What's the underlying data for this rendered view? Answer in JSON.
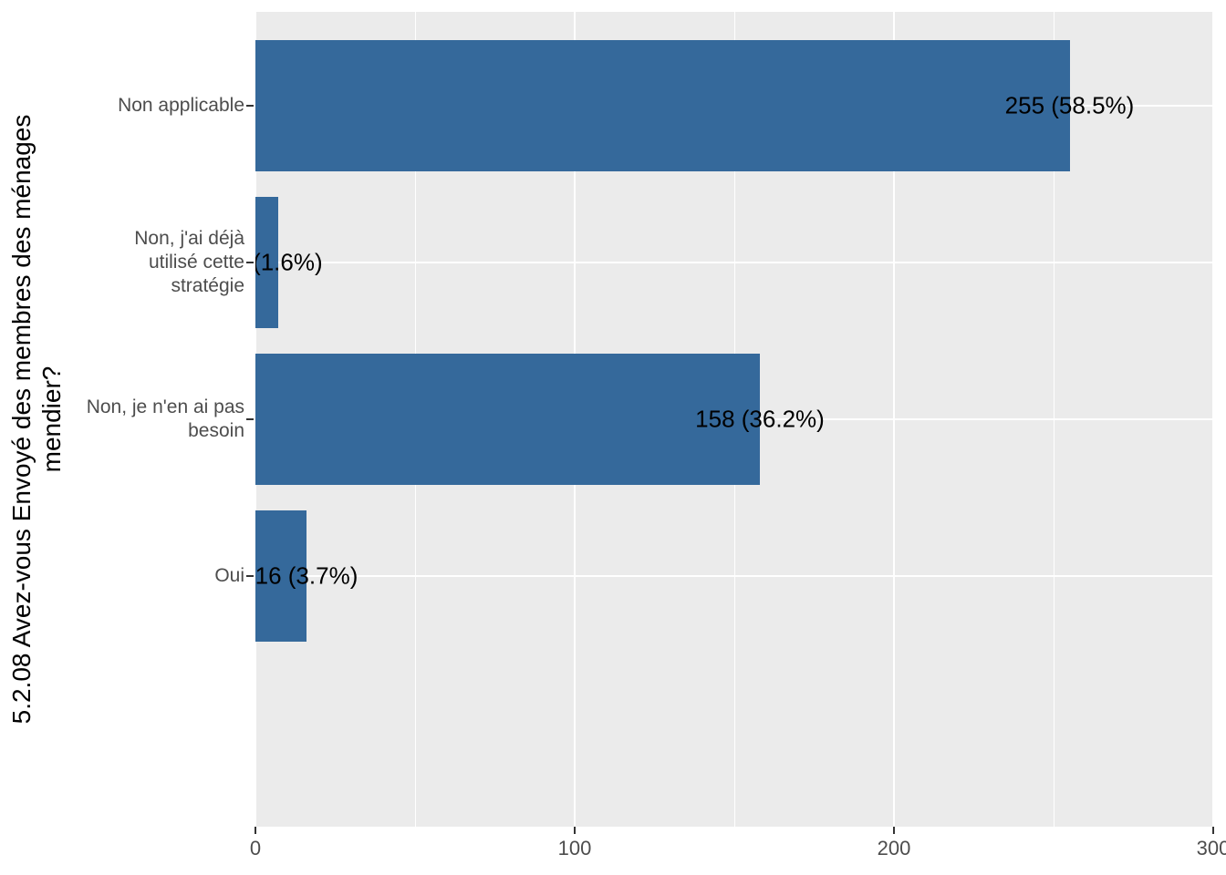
{
  "chart_data": {
    "type": "bar",
    "orientation": "horizontal",
    "title": "",
    "xlabel": "",
    "ylabel": "5.2.08 Avez-vous Envoyé des membres des ménages mendier?",
    "ylabel_display": "5.2.08 Avez-vous Envoyé des membres des ménages\nmendier?",
    "categories": [
      "Non applicable",
      "Non, j'ai déjà utilisé cette stratégie",
      "Non, je n'en ai pas besoin",
      "Oui"
    ],
    "category_label_lines": [
      "Non applicable",
      "Non, j'ai déjà\nutilisé cette\nstratégie",
      "Non, je n'en ai pas\nbesoin",
      "Oui"
    ],
    "values": [
      255,
      7,
      158,
      16
    ],
    "percents": [
      58.5,
      1.6,
      36.2,
      3.7
    ],
    "bar_labels": [
      "255 (58.5%)",
      "7 (1.6%)",
      "158 (36.2%)",
      "16 (3.7%)"
    ],
    "xlim": [
      0,
      300
    ],
    "x_major_ticks": [
      0,
      100,
      200,
      300
    ],
    "x_minor_gridlines": [
      50,
      150,
      250
    ],
    "grid": true,
    "legend": "none",
    "colors": {
      "bar": "#35699B",
      "panel_background": "#EBEBEB",
      "gridline": "#FFFFFF",
      "axis_text": "#4D4D4D",
      "axis_title": "#000000",
      "bar_label_text": "#000000",
      "tick_mark": "#333333",
      "figure_background": "#FFFFFF"
    }
  }
}
